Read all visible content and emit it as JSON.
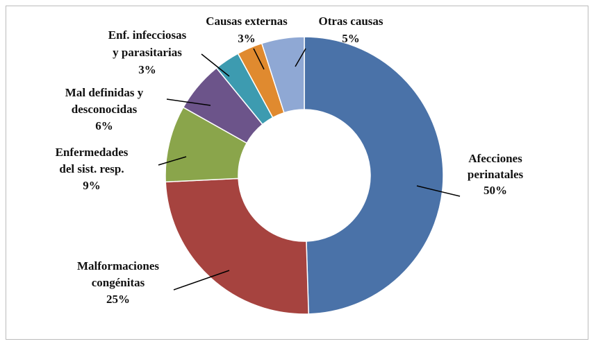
{
  "chart_data": {
    "type": "donut",
    "categories": [
      [
        "Afecciones",
        "perinatales"
      ],
      [
        "Malformaciones",
        "congénitas"
      ],
      [
        "Enfermedades",
        "del sist. resp."
      ],
      [
        "Mal definidas y",
        "desconocidas"
      ],
      [
        "Enf. infecciosas",
        "y parasitarias"
      ],
      [
        "Causas externas"
      ],
      [
        "Otras causas"
      ]
    ],
    "values": [
      50,
      25,
      9,
      6,
      3,
      3,
      5
    ],
    "value_labels": [
      "50%",
      "25%",
      "9%",
      "6%",
      "3%",
      "3%",
      "5%"
    ],
    "colors": [
      "#4a72a8",
      "#a6433f",
      "#8aa54b",
      "#6c548a",
      "#3d9bb0",
      "#e08a2f",
      "#8fa8d4"
    ]
  }
}
